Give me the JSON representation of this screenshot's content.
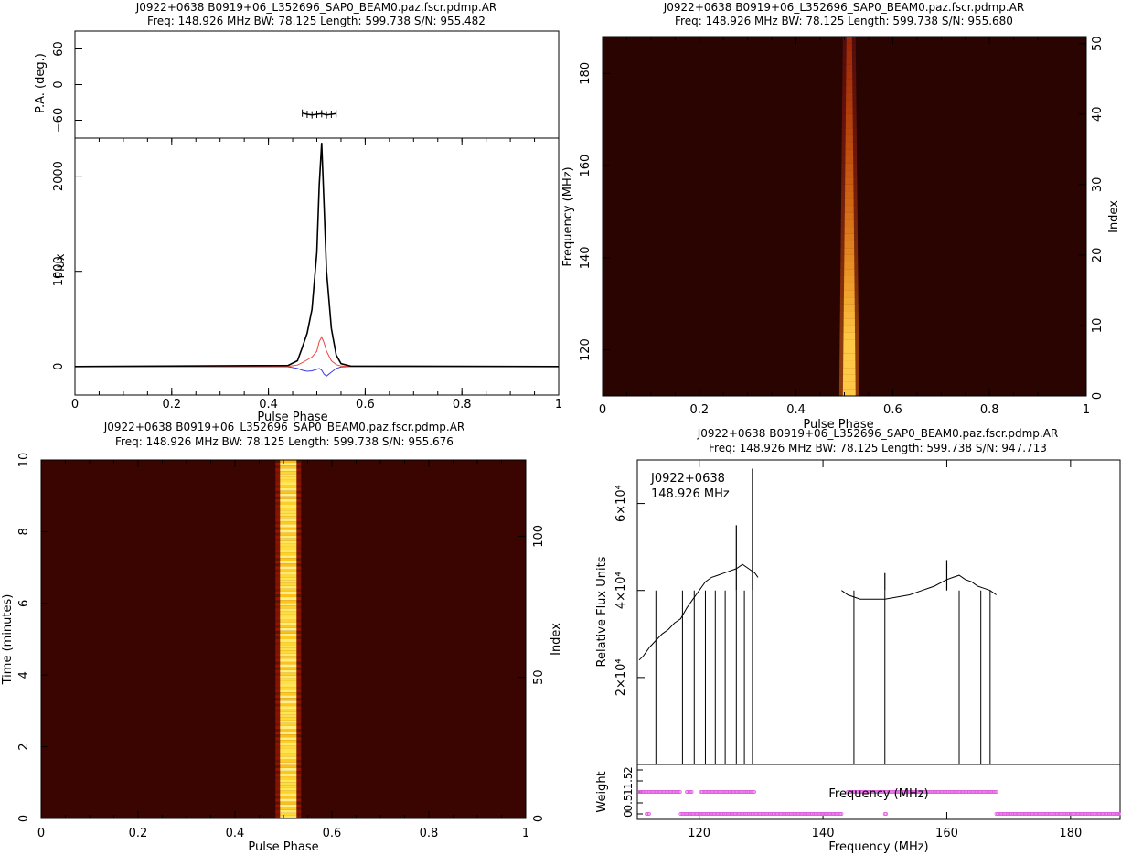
{
  "panels": {
    "pol_profile": {
      "title_line1": "J0922+0638  B0919+06_L352696_SAP0_BEAM0.paz.fscr.pdmp.AR",
      "title_line2": "Freq: 148.926 MHz BW: 78.125 Length: 599.738 S/N: 955.482"
    },
    "freq_phase": {
      "title_line1": "J0922+0638  B0919+06_L352696_SAP0_BEAM0.paz.fscr.pdmp.AR",
      "title_line2": "Freq: 148.926 MHz BW: 78.125 Length: 599.738 S/N: 955.680"
    },
    "time_phase": {
      "title_line1": "J0922+0638  B0919+06_L352696_SAP0_BEAM0.paz.fscr.pdmp.AR",
      "title_line2": "Freq: 148.926 MHz BW: 78.125 Length: 599.738 S/N: 955.676"
    },
    "bandpass": {
      "title_line1": "J0922+0638  B0919+06_L352696_SAP0_BEAM0.paz.fscr.pdmp.AR",
      "title_line2": "Freq: 148.926 MHz BW: 78.125 Length: 599.738 S/N: 947.713",
      "annotation_line1": "J0922+0638",
      "annotation_line2": "148.926 MHz"
    }
  },
  "chart_data": [
    {
      "type": "scatter",
      "name": "position-angle",
      "xlabel": "",
      "ylabel": "P.A. (deg.)",
      "xlim": [
        0,
        1
      ],
      "ylim": [
        -90,
        90
      ],
      "y_ticks": [
        "60",
        "0",
        "−60"
      ],
      "y_tick_values": [
        60,
        0,
        -60
      ],
      "x": [
        0.47,
        0.48,
        0.49,
        0.5,
        0.51,
        0.52,
        0.53,
        0.54
      ],
      "y": [
        -48,
        -50,
        -51,
        -50,
        -49,
        -51,
        -50,
        -49
      ]
    },
    {
      "type": "line",
      "name": "polarization-profile",
      "xlabel": "Pulse Phase",
      "ylabel": "Flux",
      "xlim": [
        0,
        1
      ],
      "ylim": [
        -300,
        2400
      ],
      "x_ticks": [
        "0",
        "0.2",
        "0.4",
        "0.6",
        "0.8",
        "1"
      ],
      "y_ticks": [
        "0",
        "1000",
        "2000"
      ],
      "colors": {
        "total": "#000000",
        "linear": "#e8463c",
        "circular": "#3a3ae0"
      },
      "x": [
        0.0,
        0.44,
        0.46,
        0.47,
        0.48,
        0.49,
        0.5,
        0.505,
        0.51,
        0.515,
        0.52,
        0.53,
        0.54,
        0.55,
        0.57,
        1.0
      ],
      "series": [
        {
          "values": [
            0,
            10,
            60,
            200,
            350,
            600,
            1200,
            1900,
            2350,
            1700,
            1000,
            400,
            120,
            30,
            5,
            0
          ]
        },
        {
          "values": [
            0,
            2,
            15,
            40,
            70,
            100,
            160,
            260,
            310,
            250,
            160,
            60,
            20,
            5,
            0,
            0
          ]
        },
        {
          "values": [
            0,
            -2,
            -20,
            -40,
            -50,
            -45,
            -30,
            -20,
            -40,
            -80,
            -100,
            -60,
            -20,
            -5,
            0,
            0
          ]
        }
      ]
    },
    {
      "type": "heatmap",
      "name": "frequency-vs-phase",
      "xlabel": "Pulse Phase",
      "ylabel": "Frequency (MHz)",
      "y2label": "Index",
      "xlim": [
        0,
        1
      ],
      "ylim": [
        110,
        188
      ],
      "y2lim": [
        0,
        51
      ],
      "x_ticks": [
        "0",
        "0.2",
        "0.4",
        "0.6",
        "0.8",
        "1"
      ],
      "y_ticks": [
        "120",
        "140",
        "160",
        "180"
      ],
      "y_tick_values": [
        120,
        140,
        160,
        180
      ],
      "y2_ticks": [
        "0",
        "10",
        "20",
        "30",
        "40",
        "50"
      ],
      "y2_tick_values": [
        0,
        10,
        20,
        30,
        40,
        50
      ],
      "pulse_center_phase": 0.51
    },
    {
      "type": "heatmap",
      "name": "time-vs-phase",
      "xlabel": "Pulse Phase",
      "ylabel": "Time (minutes)",
      "y2label": "Index",
      "xlim": [
        0,
        1
      ],
      "ylim": [
        0,
        10
      ],
      "y2lim": [
        0,
        127
      ],
      "x_ticks": [
        "0",
        "0.2",
        "0.4",
        "0.6",
        "0.8",
        "1"
      ],
      "y_ticks": [
        "0",
        "2",
        "4",
        "6",
        "8",
        "10"
      ],
      "y_tick_values": [
        0,
        2,
        4,
        6,
        8,
        10
      ],
      "y2_ticks": [
        "0",
        "50",
        "100"
      ],
      "y2_tick_values": [
        0,
        50,
        100
      ],
      "pulse_center_phase": 0.51
    },
    {
      "type": "line",
      "name": "bandpass",
      "xlabel": "Frequency (MHz)",
      "ylabel": "Relative Flux Units",
      "xlim": [
        110,
        188
      ],
      "ylim": [
        0,
        70000
      ],
      "x_ticks": [
        "120",
        "140",
        "160",
        "180"
      ],
      "x_tick_values": [
        120,
        140,
        160,
        180
      ],
      "y_ticks": [
        "2×10⁴",
        "4×10⁴",
        "6×10⁴"
      ],
      "y_tick_values": [
        20000,
        40000,
        60000
      ],
      "x": [
        110.3,
        111,
        112,
        113,
        114,
        115,
        116,
        117,
        118,
        119,
        120,
        121,
        122,
        123,
        124,
        125,
        126,
        127,
        128,
        129,
        129.5,
        143,
        144,
        145,
        146,
        148,
        150,
        152,
        154,
        156,
        158,
        160,
        161,
        162,
        163,
        164,
        165,
        166,
        167,
        168
      ],
      "values": [
        24000,
        25000,
        27000,
        28500,
        30000,
        31000,
        32500,
        33500,
        36000,
        38000,
        40000,
        42000,
        43000,
        43500,
        44000,
        44500,
        45000,
        46000,
        45000,
        44000,
        43000,
        40000,
        39000,
        38500,
        38000,
        38000,
        38000,
        38500,
        39000,
        40000,
        41000,
        42500,
        43000,
        43500,
        42500,
        42000,
        41000,
        40500,
        40000,
        39000
      ],
      "gaps_at": [
        113,
        117.3,
        119.2,
        121,
        122.6,
        124.2,
        126,
        127.3,
        128.6,
        145,
        150,
        162,
        165.5,
        167
      ],
      "spikes": [
        {
          "x": 126,
          "value": 55000
        },
        {
          "x": 128.6,
          "value": 68000
        },
        {
          "x": 150,
          "value": 44000
        },
        {
          "x": 160,
          "value": 47000
        }
      ],
      "color": "#000000"
    },
    {
      "type": "scatter",
      "name": "channel-weights",
      "xlabel": "Frequency (MHz)",
      "ylabel": "Weight",
      "ylim": [
        0,
        2
      ],
      "y_ticks": [
        "0",
        "0.5",
        "1",
        "1.5",
        "2"
      ],
      "marker_color": "#e060e0",
      "weight_one_ranges": [
        [
          110.3,
          117
        ],
        [
          118,
          119
        ],
        [
          120.3,
          129
        ],
        [
          144,
          168
        ]
      ],
      "weight_zero_ranges": [
        [
          111.5,
          112
        ],
        [
          117,
          129
        ],
        [
          129,
          143
        ],
        [
          150,
          150.2
        ],
        [
          168,
          188
        ]
      ]
    }
  ]
}
